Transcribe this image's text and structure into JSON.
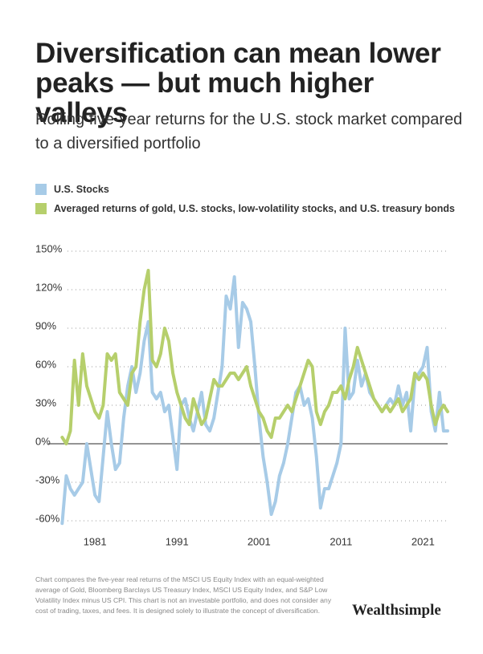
{
  "chart_data": {
    "type": "line",
    "title": "Diversification can mean lower peaks — but much higher valleys",
    "subtitle": "Rolling five-year returns for the U.S. stock market compared to a diversified portfolio",
    "x": [
      1977,
      1977.5,
      1978,
      1978.5,
      1979,
      1979.5,
      1980,
      1980.5,
      1981,
      1981.5,
      1982,
      1982.5,
      1983,
      1983.5,
      1984,
      1984.5,
      1985,
      1985.5,
      1986,
      1986.5,
      1987,
      1987.5,
      1988,
      1988.5,
      1989,
      1989.5,
      1990,
      1990.5,
      1991,
      1991.5,
      1992,
      1992.5,
      1993,
      1993.5,
      1994,
      1994.5,
      1995,
      1995.5,
      1996,
      1996.5,
      1997,
      1997.5,
      1998,
      1998.5,
      1999,
      1999.5,
      2000,
      2000.5,
      2001,
      2001.5,
      2002,
      2002.5,
      2003,
      2003.5,
      2004,
      2004.5,
      2005,
      2005.5,
      2006,
      2006.5,
      2007,
      2007.5,
      2008,
      2008.5,
      2009,
      2009.5,
      2010,
      2010.5,
      2011,
      2011.5,
      2012,
      2012.5,
      2013,
      2013.5,
      2014,
      2014.5,
      2015,
      2015.5,
      2016,
      2016.5,
      2017,
      2017.5,
      2018,
      2018.5,
      2019,
      2019.5,
      2020,
      2020.5,
      2021,
      2021.5,
      2022,
      2022.5,
      2023,
      2023.5,
      2024
    ],
    "series": [
      {
        "name": "U.S. Stocks",
        "color": "#a7cbe7",
        "values": [
          -62,
          -25,
          -35,
          -40,
          -35,
          -30,
          0,
          -20,
          -40,
          -45,
          -10,
          25,
          0,
          -20,
          -15,
          20,
          45,
          60,
          40,
          55,
          80,
          95,
          40,
          35,
          40,
          25,
          30,
          5,
          -20,
          30,
          35,
          20,
          10,
          25,
          40,
          15,
          10,
          20,
          40,
          60,
          115,
          105,
          130,
          75,
          110,
          105,
          95,
          60,
          20,
          -10,
          -30,
          -55,
          -45,
          -25,
          -15,
          0,
          20,
          40,
          45,
          30,
          35,
          20,
          -10,
          -50,
          -35,
          -35,
          -25,
          -15,
          0,
          90,
          35,
          40,
          65,
          45,
          55,
          40,
          35,
          30,
          25,
          30,
          35,
          30,
          45,
          30,
          40,
          10,
          50,
          55,
          60,
          75,
          25,
          10,
          40,
          10,
          10
        ]
      },
      {
        "name": "Averaged returns of gold, U.S. stocks, low-volatility stocks, and U.S. treasury bonds",
        "color": "#b6cf6c",
        "values": [
          5,
          0,
          10,
          65,
          30,
          70,
          45,
          35,
          25,
          20,
          30,
          70,
          65,
          70,
          40,
          35,
          30,
          55,
          60,
          95,
          120,
          135,
          65,
          60,
          70,
          90,
          80,
          55,
          40,
          30,
          20,
          15,
          35,
          25,
          15,
          20,
          35,
          50,
          45,
          45,
          50,
          55,
          55,
          50,
          55,
          60,
          45,
          35,
          25,
          20,
          10,
          5,
          20,
          20,
          25,
          30,
          25,
          35,
          45,
          55,
          65,
          60,
          25,
          15,
          25,
          30,
          40,
          40,
          45,
          35,
          50,
          60,
          75,
          65,
          55,
          45,
          35,
          30,
          25,
          30,
          25,
          30,
          35,
          25,
          30,
          35,
          55,
          50,
          55,
          50,
          30,
          15,
          25,
          30,
          25
        ]
      }
    ],
    "xlim": [
      1975.3,
      2024
    ],
    "xticks": [
      1981,
      1991,
      2001,
      2011,
      2021
    ],
    "ylim": [
      -65,
      150
    ],
    "yticks": [
      {
        "value": -60,
        "label": "-60%"
      },
      {
        "value": -30,
        "label": "-30%"
      },
      {
        "value": 0,
        "label": "0%"
      },
      {
        "value": 30,
        "label": "30%"
      },
      {
        "value": 60,
        "label": "60%"
      },
      {
        "value": 90,
        "label": "90%"
      },
      {
        "value": 120,
        "label": "120%"
      },
      {
        "value": 150,
        "label": "150%"
      }
    ],
    "grid": true
  },
  "footnote": "Chart compares the five-year real returns of the MSCI US Equity Index with an equal-weighted average of Gold, Bloomberg Barclays US Treasury Index, MSCI US Equity Index, and S&P Low Volatility Index minus US CPI. This chart is not an investable portfolio, and does not consider any cost of trading, taxes, and fees. It is designed solely to illustrate the concept of diversification.",
  "brand": "Wealthsimple"
}
